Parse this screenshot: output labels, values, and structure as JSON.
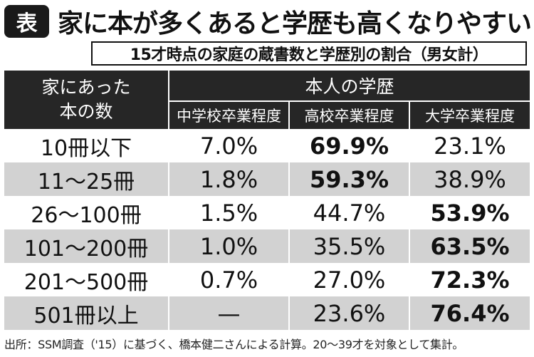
{
  "header": {
    "badge": "表",
    "title": "家に本が多くあると学歴も高くなりやすい",
    "subtitle": "15才時点の家庭の蔵書数と学歴別の割合（男女計）"
  },
  "table": {
    "row_header": [
      "家にあった",
      "本の数"
    ],
    "group_header": "本人の学歴",
    "columns": [
      "中学校卒業程度",
      "高校卒業程度",
      "大学卒業程度"
    ],
    "rows": [
      {
        "label": "10冊以下",
        "values": [
          "7.0%",
          "69.9%",
          "23.1%"
        ],
        "bold_index": 1
      },
      {
        "label": "11〜25冊",
        "values": [
          "1.8%",
          "59.3%",
          "38.9%"
        ],
        "bold_index": 1
      },
      {
        "label": "26〜100冊",
        "values": [
          "1.5%",
          "44.7%",
          "53.9%"
        ],
        "bold_index": 2
      },
      {
        "label": "101〜200冊",
        "values": [
          "1.0%",
          "35.5%",
          "63.5%"
        ],
        "bold_index": 2
      },
      {
        "label": "201〜500冊",
        "values": [
          "0.7%",
          "27.0%",
          "72.3%"
        ],
        "bold_index": 2
      },
      {
        "label": "501冊以上",
        "values": [
          "—",
          "23.6%",
          "76.4%"
        ],
        "bold_index": 2
      }
    ]
  },
  "footnote": "出所：SSM調査（'15）に基づく、橋本健二さんによる計算。20〜39才を対象として集計。"
}
